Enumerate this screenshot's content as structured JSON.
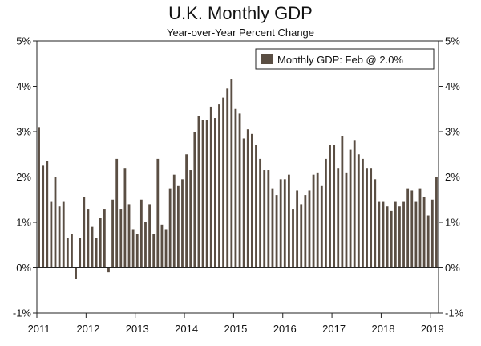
{
  "chart_data": {
    "type": "bar",
    "title": "U.K. Monthly GDP",
    "subtitle": "Year-over-Year Percent Change",
    "xlabel": "",
    "ylabel": "",
    "ylim": [
      -1,
      5
    ],
    "yticks": [
      -1,
      0,
      1,
      2,
      3,
      4,
      5
    ],
    "ytick_labels": [
      "-1%",
      "0%",
      "1%",
      "2%",
      "3%",
      "4%",
      "5%"
    ],
    "xticks": [
      "2011",
      "2012",
      "2013",
      "2014",
      "2015",
      "2016",
      "2017",
      "2018",
      "2019"
    ],
    "grid": false,
    "legend": "top-right",
    "start": "2011-01",
    "end": "2019-02",
    "series": [
      {
        "name": "Monthly GDP: Feb @ 2.0%",
        "color": "#5a4e43",
        "values": [
          3.1,
          2.25,
          2.35,
          1.45,
          2.0,
          1.35,
          1.45,
          0.65,
          0.75,
          -0.25,
          0.65,
          1.55,
          1.3,
          0.9,
          0.65,
          1.1,
          1.3,
          -0.1,
          1.5,
          2.4,
          1.3,
          2.2,
          1.4,
          0.85,
          0.75,
          1.5,
          1.0,
          1.4,
          0.75,
          2.4,
          0.95,
          0.85,
          1.75,
          2.05,
          1.8,
          1.95,
          2.5,
          2.15,
          3.0,
          3.35,
          3.25,
          3.25,
          3.55,
          3.3,
          3.6,
          3.75,
          3.95,
          4.15,
          3.5,
          3.4,
          2.85,
          3.05,
          2.95,
          2.7,
          2.4,
          2.15,
          2.15,
          1.75,
          1.6,
          1.95,
          1.95,
          2.05,
          1.3,
          1.7,
          1.4,
          1.6,
          1.7,
          2.05,
          2.1,
          1.8,
          2.4,
          2.7,
          2.7,
          2.2,
          2.9,
          2.1,
          2.6,
          2.8,
          2.5,
          2.4,
          2.2,
          2.2,
          1.95,
          1.45,
          1.45,
          1.35,
          1.25,
          1.45,
          1.35,
          1.45,
          1.75,
          1.7,
          1.45,
          1.75,
          1.55,
          1.15,
          1.5,
          2.0
        ]
      }
    ]
  }
}
